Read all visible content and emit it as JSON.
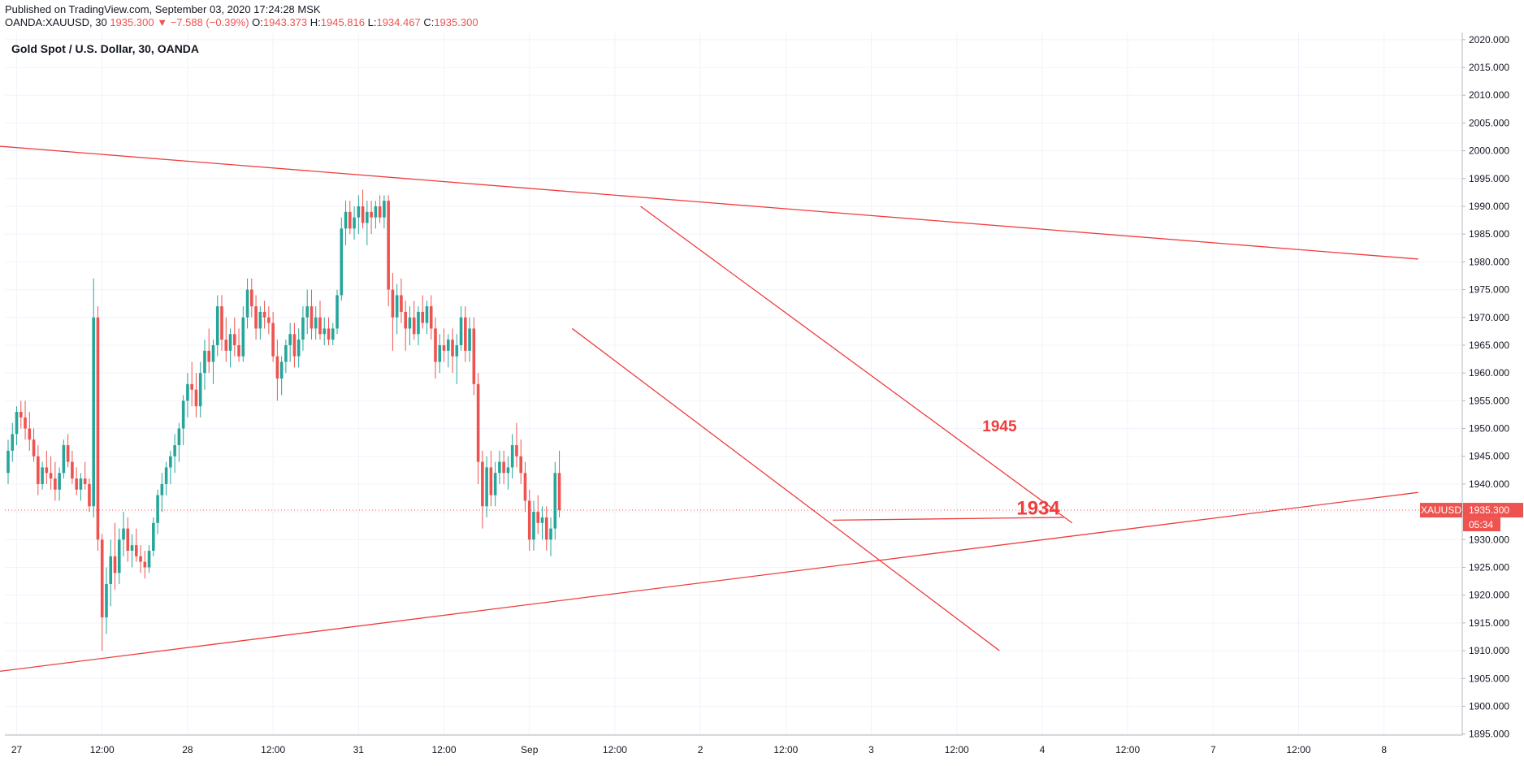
{
  "header": {
    "published": "Published on TradingView.com, September 03, 2020 17:24:28 MSK",
    "symbol": "OANDA:XAUUSD, 30",
    "last": "1935.300",
    "arrow": "▼",
    "change": "−7.588 (−0.39%)",
    "o_label": "O:",
    "o": "1943.373",
    "h_label": "H:",
    "h": "1945.816",
    "l_label": "L:",
    "l": "1934.467",
    "c_label": "C:",
    "c": "1935.300"
  },
  "colors": {
    "up": "#26a69a",
    "down": "#ef5350",
    "trendline": "#ef3d3d",
    "price_label_bg": "#ef5350",
    "grid": "#f0f3fa"
  },
  "chart_data": {
    "type": "candlestick",
    "title": "Gold Spot / U.S. Dollar, 30, OANDA",
    "ylim": [
      1891,
      2021
    ],
    "yticks": [
      "1895.000",
      "1900.000",
      "1905.000",
      "1910.000",
      "1915.000",
      "1920.000",
      "1925.000",
      "1930.000",
      "1935.000",
      "1940.000",
      "1945.000",
      "1950.000",
      "1955.000",
      "1960.000",
      "1965.000",
      "1970.000",
      "1975.000",
      "1980.000",
      "1985.000",
      "1990.000",
      "1995.000",
      "2000.000",
      "2005.000",
      "2010.000",
      "2015.000",
      "2020.000"
    ],
    "xlabels": [
      {
        "label": "27",
        "bar": 2
      },
      {
        "label": "12:00",
        "bar": 22
      },
      {
        "label": "28",
        "bar": 42
      },
      {
        "label": "12:00",
        "bar": 62
      },
      {
        "label": "31",
        "bar": 82
      },
      {
        "label": "12:00",
        "bar": 102
      },
      {
        "label": "Sep",
        "bar": 122
      },
      {
        "label": "12:00",
        "bar": 142
      },
      {
        "label": "2",
        "bar": 162
      },
      {
        "label": "12:00",
        "bar": 182
      },
      {
        "label": "3",
        "bar": 202
      },
      {
        "label": "12:00",
        "bar": 222
      },
      {
        "label": "4",
        "bar": 242
      },
      {
        "label": "12:00",
        "bar": 262
      },
      {
        "label": "7",
        "bar": 282
      },
      {
        "label": "12:00",
        "bar": 302
      },
      {
        "label": "8",
        "bar": 322
      }
    ],
    "last_price": {
      "symbol": "XAUUSD",
      "value": 1935.3,
      "value_label": "1935.300",
      "countdown": "05:34"
    },
    "annotations": [
      {
        "text": "1945",
        "bar": 228,
        "price": 1949.5
      },
      {
        "text": "1934",
        "bar": 236,
        "price": 1934.5
      }
    ],
    "trendlines": [
      {
        "name": "upper-resistance",
        "from": {
          "bar": -5,
          "price": 2001
        },
        "to": {
          "bar": 330,
          "price": 1980.5
        }
      },
      {
        "name": "lower-support",
        "from": {
          "bar": -5,
          "price": 1906
        },
        "to": {
          "bar": 330,
          "price": 1938.5
        }
      },
      {
        "name": "channel-upper",
        "from": {
          "bar": 148,
          "price": 1990
        },
        "to": {
          "bar": 249,
          "price": 1933
        }
      },
      {
        "name": "channel-lower",
        "from": {
          "bar": 132,
          "price": 1968
        },
        "to": {
          "bar": 232,
          "price": 1910
        }
      },
      {
        "name": "support-1934",
        "from": {
          "bar": 193,
          "price": 1933.5
        },
        "to": {
          "bar": 247,
          "price": 1934
        }
      }
    ],
    "candles": [
      [
        1942,
        1948,
        1940,
        1946
      ],
      [
        1946,
        1951,
        1944,
        1949
      ],
      [
        1949,
        1954,
        1947,
        1953
      ],
      [
        1953,
        1955,
        1950,
        1952
      ],
      [
        1952,
        1955,
        1948,
        1950
      ],
      [
        1950,
        1953,
        1946,
        1948
      ],
      [
        1948,
        1950,
        1944,
        1945
      ],
      [
        1945,
        1947,
        1938,
        1940
      ],
      [
        1940,
        1944,
        1939,
        1943
      ],
      [
        1943,
        1946,
        1940,
        1942
      ],
      [
        1942,
        1945,
        1939,
        1941
      ],
      [
        1941,
        1944,
        1937,
        1939
      ],
      [
        1939,
        1943,
        1937,
        1942
      ],
      [
        1942,
        1948,
        1941,
        1947
      ],
      [
        1947,
        1949,
        1943,
        1944
      ],
      [
        1944,
        1946,
        1940,
        1941
      ],
      [
        1941,
        1943,
        1938,
        1939
      ],
      [
        1939,
        1942,
        1937,
        1941
      ],
      [
        1941,
        1944,
        1939,
        1940
      ],
      [
        1940,
        1941,
        1935,
        1936
      ],
      [
        1936,
        1977,
        1934,
        1970
      ],
      [
        1970,
        1972,
        1928,
        1930
      ],
      [
        1930,
        1931,
        1910,
        1916
      ],
      [
        1916,
        1925,
        1913,
        1922
      ],
      [
        1922,
        1930,
        1918,
        1927
      ],
      [
        1927,
        1933,
        1921,
        1924
      ],
      [
        1924,
        1932,
        1922,
        1930
      ],
      [
        1930,
        1935,
        1927,
        1932
      ],
      [
        1932,
        1934,
        1926,
        1928
      ],
      [
        1928,
        1931,
        1925,
        1929
      ],
      [
        1929,
        1932,
        1926,
        1927
      ],
      [
        1927,
        1929,
        1924,
        1926
      ],
      [
        1926,
        1928,
        1923,
        1925
      ],
      [
        1925,
        1929,
        1924,
        1928
      ],
      [
        1928,
        1934,
        1927,
        1933
      ],
      [
        1933,
        1939,
        1931,
        1938
      ],
      [
        1938,
        1942,
        1935,
        1940
      ],
      [
        1940,
        1944,
        1938,
        1943
      ],
      [
        1943,
        1946,
        1940,
        1945
      ],
      [
        1945,
        1949,
        1942,
        1947
      ],
      [
        1947,
        1951,
        1944,
        1950
      ],
      [
        1950,
        1956,
        1947,
        1955
      ],
      [
        1955,
        1960,
        1952,
        1958
      ],
      [
        1958,
        1962,
        1954,
        1957
      ],
      [
        1957,
        1960,
        1952,
        1954
      ],
      [
        1954,
        1962,
        1952,
        1960
      ],
      [
        1960,
        1966,
        1957,
        1964
      ],
      [
        1964,
        1968,
        1960,
        1962
      ],
      [
        1962,
        1966,
        1958,
        1965
      ],
      [
        1965,
        1974,
        1963,
        1972
      ],
      [
        1972,
        1974,
        1964,
        1966
      ],
      [
        1966,
        1970,
        1962,
        1964
      ],
      [
        1964,
        1968,
        1961,
        1967
      ],
      [
        1967,
        1970,
        1963,
        1965
      ],
      [
        1965,
        1968,
        1962,
        1963
      ],
      [
        1963,
        1972,
        1962,
        1970
      ],
      [
        1970,
        1977,
        1968,
        1975
      ],
      [
        1975,
        1977,
        1970,
        1972
      ],
      [
        1972,
        1974,
        1966,
        1968
      ],
      [
        1968,
        1972,
        1966,
        1971
      ],
      [
        1971,
        1973,
        1968,
        1970
      ],
      [
        1970,
        1972,
        1967,
        1969
      ],
      [
        1969,
        1971,
        1962,
        1963
      ],
      [
        1963,
        1966,
        1955,
        1959
      ],
      [
        1959,
        1963,
        1956,
        1962
      ],
      [
        1962,
        1966,
        1960,
        1965
      ],
      [
        1965,
        1969,
        1962,
        1967
      ],
      [
        1967,
        1969,
        1961,
        1963
      ],
      [
        1963,
        1968,
        1961,
        1966
      ],
      [
        1966,
        1972,
        1964,
        1970
      ],
      [
        1970,
        1975,
        1967,
        1972
      ],
      [
        1972,
        1975,
        1966,
        1968
      ],
      [
        1968,
        1972,
        1966,
        1970
      ],
      [
        1970,
        1973,
        1966,
        1967
      ],
      [
        1967,
        1970,
        1965,
        1968
      ],
      [
        1968,
        1970,
        1965,
        1966
      ],
      [
        1966,
        1969,
        1965,
        1968
      ],
      [
        1968,
        1975,
        1967,
        1974
      ],
      [
        1974,
        1988,
        1973,
        1986
      ],
      [
        1986,
        1991,
        1983,
        1989
      ],
      [
        1989,
        1991,
        1985,
        1986
      ],
      [
        1986,
        1990,
        1984,
        1988
      ],
      [
        1988,
        1992,
        1985,
        1990
      ],
      [
        1990,
        1993,
        1986,
        1987
      ],
      [
        1987,
        1991,
        1983,
        1989
      ],
      [
        1989,
        1991,
        1985,
        1988
      ],
      [
        1988,
        1991,
        1986,
        1990
      ],
      [
        1990,
        1992,
        1987,
        1988
      ],
      [
        1988,
        1992,
        1986,
        1991
      ],
      [
        1991,
        1992,
        1972,
        1975
      ],
      [
        1975,
        1978,
        1964,
        1970
      ],
      [
        1970,
        1976,
        1967,
        1974
      ],
      [
        1974,
        1977,
        1969,
        1971
      ],
      [
        1971,
        1973,
        1964,
        1968
      ],
      [
        1968,
        1972,
        1965,
        1970
      ],
      [
        1970,
        1973,
        1966,
        1967
      ],
      [
        1967,
        1972,
        1965,
        1971
      ],
      [
        1971,
        1974,
        1968,
        1969
      ],
      [
        1969,
        1973,
        1967,
        1972
      ],
      [
        1972,
        1974,
        1966,
        1968
      ],
      [
        1968,
        1970,
        1959,
        1962
      ],
      [
        1962,
        1967,
        1960,
        1965
      ],
      [
        1965,
        1968,
        1962,
        1964
      ],
      [
        1964,
        1967,
        1961,
        1966
      ],
      [
        1966,
        1968,
        1960,
        1963
      ],
      [
        1963,
        1967,
        1958,
        1965
      ],
      [
        1965,
        1972,
        1964,
        1970
      ],
      [
        1970,
        1972,
        1962,
        1964
      ],
      [
        1964,
        1970,
        1962,
        1968
      ],
      [
        1968,
        1970,
        1956,
        1958
      ],
      [
        1958,
        1960,
        1940,
        1944
      ],
      [
        1944,
        1946,
        1932,
        1936
      ],
      [
        1936,
        1945,
        1934,
        1943
      ],
      [
        1943,
        1946,
        1936,
        1938
      ],
      [
        1938,
        1944,
        1936,
        1942
      ],
      [
        1942,
        1946,
        1940,
        1944
      ],
      [
        1944,
        1946,
        1940,
        1942
      ],
      [
        1942,
        1945,
        1939,
        1943
      ],
      [
        1943,
        1949,
        1941,
        1947
      ],
      [
        1947,
        1951,
        1943,
        1945
      ],
      [
        1945,
        1948,
        1940,
        1942
      ],
      [
        1942,
        1944,
        1935,
        1937
      ],
      [
        1937,
        1939,
        1928,
        1930
      ],
      [
        1930,
        1937,
        1928,
        1935
      ],
      [
        1935,
        1938,
        1931,
        1933
      ],
      [
        1933,
        1936,
        1930,
        1934
      ],
      [
        1934,
        1936,
        1928,
        1930
      ],
      [
        1930,
        1934,
        1927,
        1932
      ],
      [
        1932,
        1944,
        1930,
        1942
      ],
      [
        1942,
        1946,
        1934,
        1935.3
      ]
    ]
  }
}
